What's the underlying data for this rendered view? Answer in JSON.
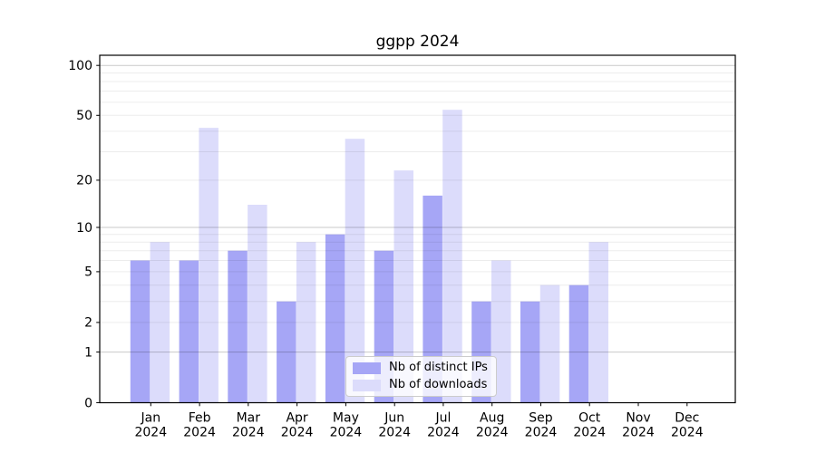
{
  "chart_data": {
    "type": "bar",
    "title": "ggpp 2024",
    "x_axis": {
      "categories": [
        "Jan",
        "Feb",
        "Mar",
        "Apr",
        "May",
        "Jun",
        "Jul",
        "Aug",
        "Sep",
        "Oct",
        "Nov",
        "Dec"
      ],
      "year": "2024"
    },
    "y_axis": {
      "scale": "log1p",
      "tick_labels": [
        100,
        50,
        20,
        10,
        5,
        2,
        1,
        0
      ],
      "range": [
        0,
        115
      ]
    },
    "series": [
      {
        "name": "Nb of distinct IPs",
        "color": "#a6a6f6",
        "values": [
          6,
          6,
          7,
          3,
          9,
          7,
          16,
          3,
          3,
          4,
          0,
          0
        ]
      },
      {
        "name": "Nb of downloads",
        "color": "#dcdcfb",
        "values": [
          8,
          42,
          14,
          8,
          36,
          23,
          54,
          6,
          4,
          8,
          0,
          0
        ]
      }
    ],
    "legend": {
      "position": "lower center"
    },
    "grid": {
      "major_color": "#cccccc",
      "minor_color": "#ededed"
    }
  },
  "colors": {
    "background": "#ffffff",
    "axis": "#000000"
  }
}
